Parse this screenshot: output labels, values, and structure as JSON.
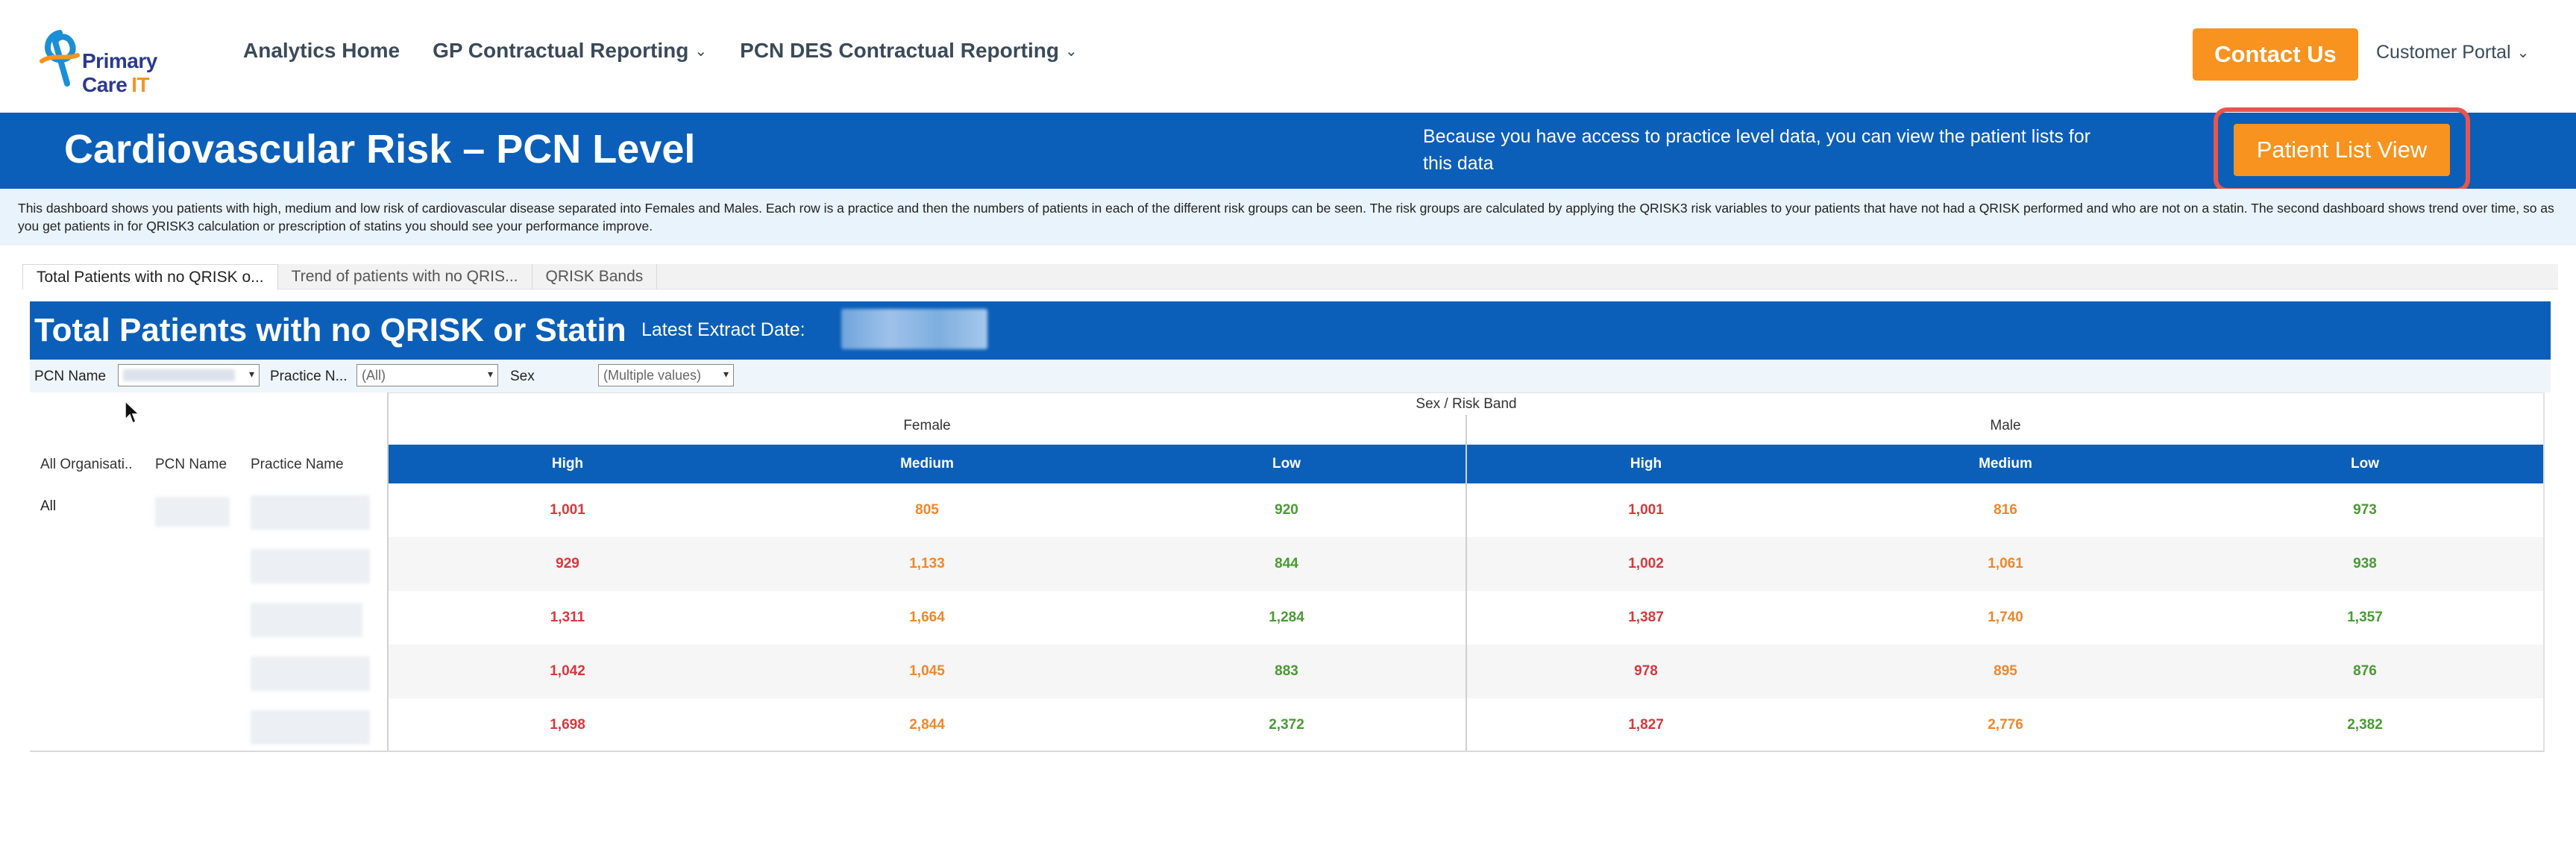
{
  "nav": {
    "logo_main": "Primary Care",
    "logo_accent": "IT",
    "links": [
      {
        "label": "Analytics Home",
        "dropdown": false
      },
      {
        "label": "GP Contractual Reporting",
        "dropdown": true
      },
      {
        "label": "PCN DES Contractual Reporting",
        "dropdown": true
      }
    ],
    "contact_label": "Contact Us",
    "portal_label": "Customer Portal",
    "chevron": "⌄"
  },
  "banner": {
    "title": "Cardiovascular Risk – PCN Level",
    "note": "Because you have access to practice level data, you can view the patient lists for this data",
    "patient_list_button": "Patient List View"
  },
  "description": "This dashboard shows you patients with high, medium and low risk of cardiovascular disease separated into Females and Males.  Each row is a practice and then the numbers of patients in each of the different risk groups can be seen.  The risk groups are calculated by applying the QRISK3 risk variables to your patients that have not had a QRISK performed and who are not on a statin.  The second dashboard shows trend over time, so as you get patients in for QRISK3 calculation or prescription of statins you should see your performance improve.",
  "tabs": [
    {
      "label": "Total Patients with no QRISK o...",
      "active": true
    },
    {
      "label": "Trend of patients with no QRIS...",
      "active": false
    },
    {
      "label": "QRISK Bands",
      "active": false
    }
  ],
  "dashboard": {
    "title": "Total Patients with no QRISK or Statin",
    "extract_label": "Latest Extract Date:",
    "filters": {
      "pcn_label": "PCN Name",
      "practice_label": "Practice N...",
      "practice_value": "(All)",
      "sex_label": "Sex",
      "sex_value": "(Multiple values)",
      "arrow": "▾"
    }
  },
  "table": {
    "header_group": "Sex / Risk Band",
    "row_headers": [
      "All Organisati..",
      "PCN Name",
      "Practice Name"
    ],
    "first_row_label": "All",
    "sexes": [
      "Female",
      "Male"
    ],
    "risk_bands": [
      "High",
      "Medium",
      "Low",
      "High",
      "Medium",
      "Low"
    ],
    "rows": [
      [
        "1,001",
        "805",
        "920",
        "1,001",
        "816",
        "973"
      ],
      [
        "929",
        "1,133",
        "844",
        "1,002",
        "1,061",
        "938"
      ],
      [
        "1,311",
        "1,664",
        "1,284",
        "1,387",
        "1,740",
        "1,357"
      ],
      [
        "1,042",
        "1,045",
        "883",
        "978",
        "895",
        "876"
      ],
      [
        "1,698",
        "2,844",
        "2,372",
        "1,827",
        "2,776",
        "2,382"
      ]
    ]
  },
  "colors": {
    "brand_blue": "#0b5fb9",
    "accent_orange": "#f7931e",
    "high": "#d7383c",
    "medium": "#f0872b",
    "low": "#4a9a34",
    "highlight_ring": "#e8554e"
  }
}
